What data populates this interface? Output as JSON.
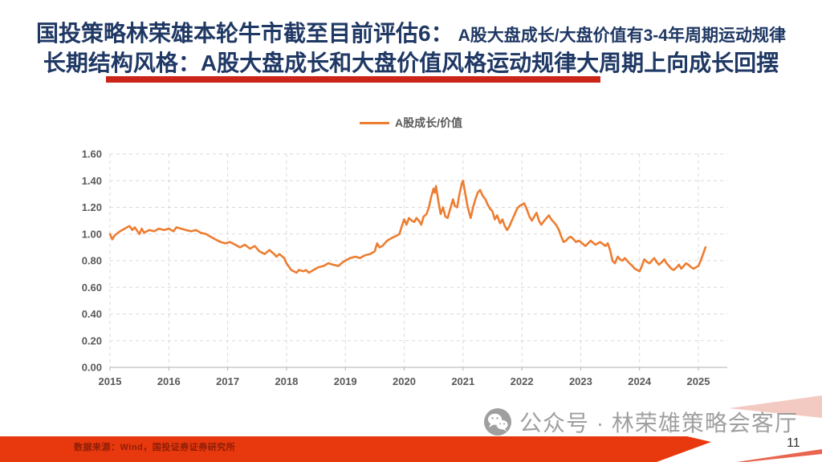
{
  "header": {
    "line1_main": "国投策略林荣雄本轮牛市截至目前评估6：",
    "line1_sub": "A股大盘成长/大盘价值有3-4年周期运动规律",
    "line2": "长期结构风格：A股大盘成长和大盘价值风格运动规律大周期上向成长回摆"
  },
  "legend": {
    "label": "A股成长/价值"
  },
  "footer": {
    "source": "数据来源：Wind，国投证券证券研究所",
    "page_number": "11"
  },
  "watermark": {
    "icon": "wechat-icon",
    "text": "公众号 · 林荣雄策略会客厅"
  },
  "colors": {
    "title_navy": "#1F3864",
    "title_underline_red": "#CB2419",
    "series_orange": "#ED7D31",
    "grid_gray": "#D9D9D9",
    "axis_gray": "#BFBFBF",
    "tick_text_gray": "#595959",
    "footer_bar_red": "#E8380D",
    "footer_text_red": "#8C1E08",
    "corner_pink": "#F2CAC2",
    "watermark_gray": "#8f8f8f"
  },
  "chart_data": {
    "type": "line",
    "title": "",
    "xlabel": "",
    "ylabel": "",
    "legend_position": "top-center",
    "grid": "dashed",
    "xlim": [
      2015,
      2025.5
    ],
    "ylim": [
      0,
      1.6
    ],
    "x_ticks": [
      {
        "v": 2015,
        "label": "2015"
      },
      {
        "v": 2016,
        "label": "2016"
      },
      {
        "v": 2017,
        "label": "2017"
      },
      {
        "v": 2018,
        "label": "2018"
      },
      {
        "v": 2019,
        "label": "2019"
      },
      {
        "v": 2020,
        "label": "2020"
      },
      {
        "v": 2021,
        "label": "2021"
      },
      {
        "v": 2022,
        "label": "2022"
      },
      {
        "v": 2023,
        "label": "2023"
      },
      {
        "v": 2024,
        "label": "2024"
      },
      {
        "v": 2025,
        "label": "2025"
      }
    ],
    "y_ticks": [
      {
        "v": 0.0,
        "label": "0.00"
      },
      {
        "v": 0.2,
        "label": "0.20"
      },
      {
        "v": 0.4,
        "label": "0.40"
      },
      {
        "v": 0.6,
        "label": "0.60"
      },
      {
        "v": 0.8,
        "label": "0.80"
      },
      {
        "v": 1.0,
        "label": "1.00"
      },
      {
        "v": 1.2,
        "label": "1.20"
      },
      {
        "v": 1.4,
        "label": "1.40"
      },
      {
        "v": 1.6,
        "label": "1.60"
      }
    ],
    "series": [
      {
        "name": "A股成长/价值",
        "color": "#ED7D31",
        "points": [
          [
            2015.0,
            1.0
          ],
          [
            2015.04,
            0.96
          ],
          [
            2015.08,
            0.99
          ],
          [
            2015.17,
            1.02
          ],
          [
            2015.25,
            1.04
          ],
          [
            2015.33,
            1.06
          ],
          [
            2015.38,
            1.03
          ],
          [
            2015.42,
            1.05
          ],
          [
            2015.5,
            1.0
          ],
          [
            2015.54,
            1.04
          ],
          [
            2015.58,
            1.01
          ],
          [
            2015.67,
            1.03
          ],
          [
            2015.75,
            1.02
          ],
          [
            2015.83,
            1.04
          ],
          [
            2015.92,
            1.03
          ],
          [
            2016.0,
            1.04
          ],
          [
            2016.08,
            1.02
          ],
          [
            2016.13,
            1.05
          ],
          [
            2016.21,
            1.04
          ],
          [
            2016.29,
            1.03
          ],
          [
            2016.38,
            1.02
          ],
          [
            2016.46,
            1.03
          ],
          [
            2016.54,
            1.01
          ],
          [
            2016.63,
            1.0
          ],
          [
            2016.71,
            0.98
          ],
          [
            2016.79,
            0.96
          ],
          [
            2016.88,
            0.94
          ],
          [
            2016.96,
            0.93
          ],
          [
            2017.04,
            0.94
          ],
          [
            2017.13,
            0.92
          ],
          [
            2017.21,
            0.9
          ],
          [
            2017.29,
            0.92
          ],
          [
            2017.38,
            0.89
          ],
          [
            2017.46,
            0.91
          ],
          [
            2017.54,
            0.87
          ],
          [
            2017.63,
            0.85
          ],
          [
            2017.71,
            0.88
          ],
          [
            2017.79,
            0.85
          ],
          [
            2017.83,
            0.83
          ],
          [
            2017.88,
            0.85
          ],
          [
            2017.96,
            0.82
          ],
          [
            2018.0,
            0.78
          ],
          [
            2018.08,
            0.73
          ],
          [
            2018.17,
            0.71
          ],
          [
            2018.21,
            0.73
          ],
          [
            2018.29,
            0.72
          ],
          [
            2018.33,
            0.73
          ],
          [
            2018.38,
            0.71
          ],
          [
            2018.46,
            0.73
          ],
          [
            2018.54,
            0.75
          ],
          [
            2018.63,
            0.76
          ],
          [
            2018.71,
            0.78
          ],
          [
            2018.79,
            0.77
          ],
          [
            2018.88,
            0.76
          ],
          [
            2018.96,
            0.79
          ],
          [
            2019.0,
            0.8
          ],
          [
            2019.08,
            0.82
          ],
          [
            2019.17,
            0.83
          ],
          [
            2019.25,
            0.82
          ],
          [
            2019.33,
            0.84
          ],
          [
            2019.42,
            0.85
          ],
          [
            2019.5,
            0.87
          ],
          [
            2019.54,
            0.93
          ],
          [
            2019.58,
            0.9
          ],
          [
            2019.63,
            0.91
          ],
          [
            2019.71,
            0.95
          ],
          [
            2019.79,
            0.97
          ],
          [
            2019.88,
            0.99
          ],
          [
            2019.92,
            1.0
          ],
          [
            2019.96,
            1.06
          ],
          [
            2020.0,
            1.11
          ],
          [
            2020.04,
            1.07
          ],
          [
            2020.08,
            1.12
          ],
          [
            2020.13,
            1.1
          ],
          [
            2020.17,
            1.09
          ],
          [
            2020.21,
            1.12
          ],
          [
            2020.25,
            1.1
          ],
          [
            2020.29,
            1.07
          ],
          [
            2020.33,
            1.13
          ],
          [
            2020.38,
            1.15
          ],
          [
            2020.42,
            1.2
          ],
          [
            2020.46,
            1.28
          ],
          [
            2020.5,
            1.34
          ],
          [
            2020.52,
            1.31
          ],
          [
            2020.54,
            1.36
          ],
          [
            2020.58,
            1.25
          ],
          [
            2020.62,
            1.15
          ],
          [
            2020.66,
            1.2
          ],
          [
            2020.7,
            1.13
          ],
          [
            2020.74,
            1.12
          ],
          [
            2020.79,
            1.2
          ],
          [
            2020.83,
            1.26
          ],
          [
            2020.86,
            1.21
          ],
          [
            2020.9,
            1.2
          ],
          [
            2020.94,
            1.3
          ],
          [
            2020.98,
            1.38
          ],
          [
            2021.0,
            1.4
          ],
          [
            2021.04,
            1.3
          ],
          [
            2021.08,
            1.2
          ],
          [
            2021.13,
            1.12
          ],
          [
            2021.17,
            1.2
          ],
          [
            2021.21,
            1.26
          ],
          [
            2021.25,
            1.31
          ],
          [
            2021.29,
            1.33
          ],
          [
            2021.33,
            1.29
          ],
          [
            2021.38,
            1.26
          ],
          [
            2021.42,
            1.22
          ],
          [
            2021.46,
            1.19
          ],
          [
            2021.5,
            1.17
          ],
          [
            2021.54,
            1.11
          ],
          [
            2021.58,
            1.14
          ],
          [
            2021.63,
            1.08
          ],
          [
            2021.67,
            1.11
          ],
          [
            2021.71,
            1.06
          ],
          [
            2021.75,
            1.03
          ],
          [
            2021.79,
            1.06
          ],
          [
            2021.83,
            1.1
          ],
          [
            2021.88,
            1.15
          ],
          [
            2021.92,
            1.19
          ],
          [
            2021.96,
            1.21
          ],
          [
            2022.0,
            1.22
          ],
          [
            2022.04,
            1.23
          ],
          [
            2022.08,
            1.19
          ],
          [
            2022.13,
            1.13
          ],
          [
            2022.17,
            1.1
          ],
          [
            2022.21,
            1.13
          ],
          [
            2022.25,
            1.16
          ],
          [
            2022.29,
            1.1
          ],
          [
            2022.33,
            1.07
          ],
          [
            2022.38,
            1.1
          ],
          [
            2022.42,
            1.12
          ],
          [
            2022.46,
            1.14
          ],
          [
            2022.5,
            1.11
          ],
          [
            2022.54,
            1.09
          ],
          [
            2022.58,
            1.07
          ],
          [
            2022.63,
            1.03
          ],
          [
            2022.67,
            0.98
          ],
          [
            2022.71,
            0.94
          ],
          [
            2022.75,
            0.95
          ],
          [
            2022.79,
            0.97
          ],
          [
            2022.83,
            0.98
          ],
          [
            2022.88,
            0.96
          ],
          [
            2022.92,
            0.94
          ],
          [
            2022.96,
            0.95
          ],
          [
            2023.0,
            0.94
          ],
          [
            2023.08,
            0.91
          ],
          [
            2023.17,
            0.95
          ],
          [
            2023.25,
            0.92
          ],
          [
            2023.33,
            0.94
          ],
          [
            2023.42,
            0.91
          ],
          [
            2023.46,
            0.93
          ],
          [
            2023.5,
            0.88
          ],
          [
            2023.54,
            0.8
          ],
          [
            2023.58,
            0.78
          ],
          [
            2023.63,
            0.83
          ],
          [
            2023.67,
            0.81
          ],
          [
            2023.71,
            0.8
          ],
          [
            2023.75,
            0.82
          ],
          [
            2023.79,
            0.8
          ],
          [
            2023.83,
            0.78
          ],
          [
            2023.88,
            0.76
          ],
          [
            2023.92,
            0.74
          ],
          [
            2023.96,
            0.73
          ],
          [
            2024.0,
            0.72
          ],
          [
            2024.04,
            0.76
          ],
          [
            2024.08,
            0.81
          ],
          [
            2024.13,
            0.79
          ],
          [
            2024.17,
            0.78
          ],
          [
            2024.21,
            0.8
          ],
          [
            2024.25,
            0.82
          ],
          [
            2024.29,
            0.79
          ],
          [
            2024.33,
            0.77
          ],
          [
            2024.38,
            0.79
          ],
          [
            2024.42,
            0.81
          ],
          [
            2024.46,
            0.78
          ],
          [
            2024.5,
            0.76
          ],
          [
            2024.54,
            0.74
          ],
          [
            2024.58,
            0.73
          ],
          [
            2024.63,
            0.75
          ],
          [
            2024.67,
            0.77
          ],
          [
            2024.71,
            0.74
          ],
          [
            2024.75,
            0.76
          ],
          [
            2024.79,
            0.78
          ],
          [
            2024.83,
            0.77
          ],
          [
            2024.88,
            0.75
          ],
          [
            2024.92,
            0.74
          ],
          [
            2024.96,
            0.75
          ],
          [
            2025.0,
            0.76
          ],
          [
            2025.04,
            0.8
          ],
          [
            2025.08,
            0.85
          ],
          [
            2025.12,
            0.9
          ]
        ]
      }
    ]
  }
}
